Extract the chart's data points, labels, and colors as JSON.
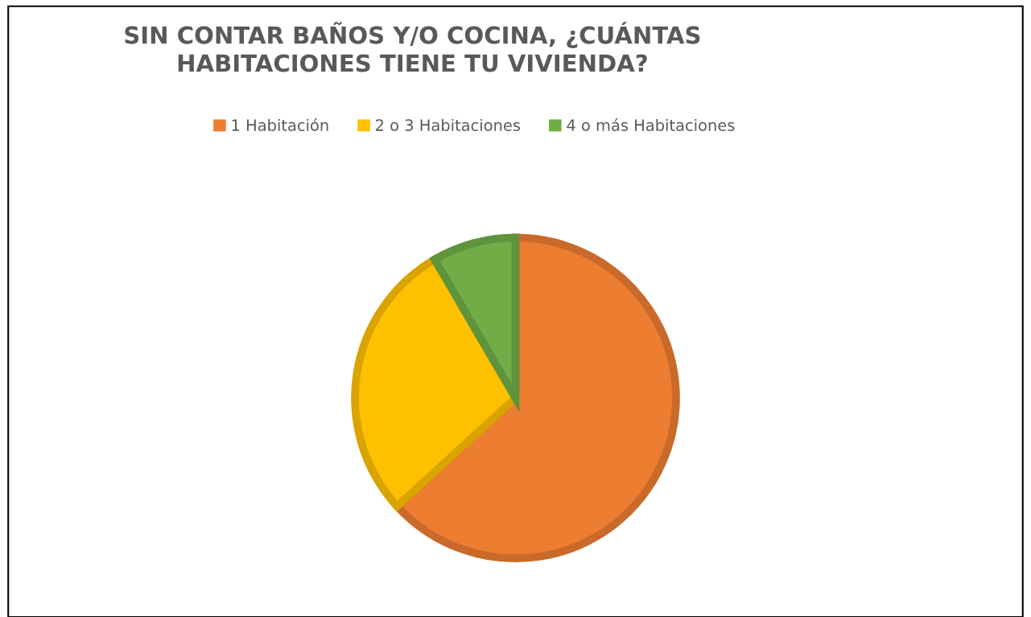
{
  "chart_data": {
    "type": "pie",
    "title": "SIN CONTAR BAÑOS Y/O COCINA, ¿CUÁNTAS\nHABITACIONES TIENE TU VIVIENDA?",
    "categories": [
      "1 Habitación",
      "2 o 3 Habitaciones",
      "4 o más Habitaciones"
    ],
    "values": [
      63.2,
      28.4,
      8.4
    ],
    "colors": [
      "#ed7d31",
      "#ffc000",
      "#70ad47"
    ],
    "legend": "top"
  }
}
